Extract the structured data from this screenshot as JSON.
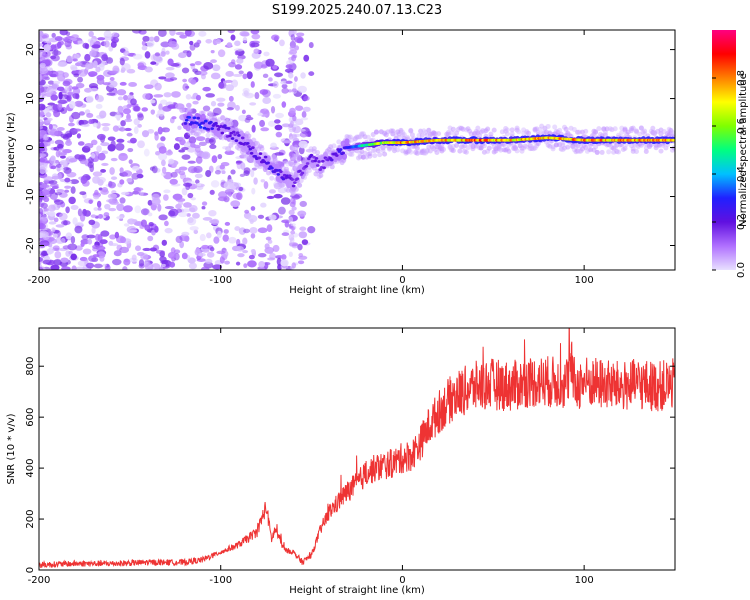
{
  "title": "S199.2025.240.07.13.C23",
  "chart_data": [
    {
      "type": "heatmap",
      "title": "",
      "xlabel": "Height of straight line (km)",
      "ylabel": "Frequency (Hz)",
      "xlim": [
        -200,
        150
      ],
      "ylim": [
        -25,
        24
      ],
      "xticks": [
        -200,
        -100,
        0,
        100
      ],
      "yticks": [
        -20,
        -10,
        0,
        10,
        20
      ],
      "colorbar": {
        "label": "Normalized spectral amplitude",
        "range": [
          0,
          1
        ],
        "ticks": [
          0.0,
          0.2,
          0.4,
          0.6,
          0.8
        ],
        "tick_labels": [
          "0.0",
          "0.2",
          "0.4",
          "0.6",
          "0.8"
        ],
        "colormap": [
          "#e8e0ff",
          "#b070ff",
          "#6010e0",
          "#2020ff",
          "#00c0ff",
          "#00ff80",
          "#80ff00",
          "#ffff00",
          "#ff8000",
          "#ff0000",
          "#ff0080"
        ]
      },
      "ridge": [
        {
          "x": -120,
          "f": 5.5,
          "a": 0.28
        },
        {
          "x": -110,
          "f": 5.0,
          "a": 0.3
        },
        {
          "x": -100,
          "f": 4.0,
          "a": 0.22
        },
        {
          "x": -90,
          "f": 2.0,
          "a": 0.2
        },
        {
          "x": -80,
          "f": -1.5,
          "a": 0.22
        },
        {
          "x": -70,
          "f": -4.5,
          "a": 0.25
        },
        {
          "x": -60,
          "f": -7.0,
          "a": 0.18
        },
        {
          "x": -50,
          "f": -2.0,
          "a": 0.2
        },
        {
          "x": -45,
          "f": -4.0,
          "a": 0.18
        },
        {
          "x": -40,
          "f": -2.0,
          "a": 0.2
        },
        {
          "x": -30,
          "f": 0.0,
          "a": 0.3
        },
        {
          "x": -20,
          "f": 0.5,
          "a": 0.5
        },
        {
          "x": -10,
          "f": 1.0,
          "a": 0.7
        },
        {
          "x": 0,
          "f": 1.0,
          "a": 0.8
        },
        {
          "x": 20,
          "f": 1.5,
          "a": 0.75
        },
        {
          "x": 40,
          "f": 1.5,
          "a": 0.85
        },
        {
          "x": 60,
          "f": 1.5,
          "a": 0.75
        },
        {
          "x": 80,
          "f": 2.0,
          "a": 0.8
        },
        {
          "x": 100,
          "f": 1.5,
          "a": 0.8
        },
        {
          "x": 120,
          "f": 1.5,
          "a": 0.8
        },
        {
          "x": 150,
          "f": 1.5,
          "a": 0.8
        }
      ]
    },
    {
      "type": "line",
      "title": "",
      "xlabel": "Height of straight line (km)",
      "ylabel": "SNR (10 * v/v)",
      "xlim": [
        -200,
        150
      ],
      "ylim": [
        0,
        950
      ],
      "xticks": [
        -200,
        -100,
        0,
        100
      ],
      "yticks": [
        0,
        200,
        400,
        600,
        800
      ],
      "color": "#ee3333",
      "series": [
        {
          "name": "SNR",
          "x": [
            -200,
            -180,
            -160,
            -140,
            -120,
            -110,
            -100,
            -90,
            -80,
            -75,
            -72,
            -70,
            -65,
            -60,
            -55,
            -50,
            -45,
            -40,
            -35,
            -30,
            -25,
            -20,
            -15,
            -10,
            -5,
            0,
            5,
            10,
            15,
            20,
            25,
            30,
            40,
            50,
            60,
            70,
            80,
            90,
            93,
            95,
            100,
            110,
            120,
            130,
            140,
            150
          ],
          "y": [
            20,
            25,
            25,
            30,
            30,
            40,
            70,
            100,
            150,
            250,
            120,
            160,
            80,
            70,
            30,
            60,
            160,
            230,
            270,
            310,
            340,
            380,
            400,
            410,
            420,
            440,
            450,
            500,
            570,
            620,
            660,
            690,
            720,
            730,
            720,
            740,
            740,
            730,
            800,
            720,
            740,
            730,
            720,
            730,
            720,
            730
          ]
        }
      ]
    }
  ]
}
